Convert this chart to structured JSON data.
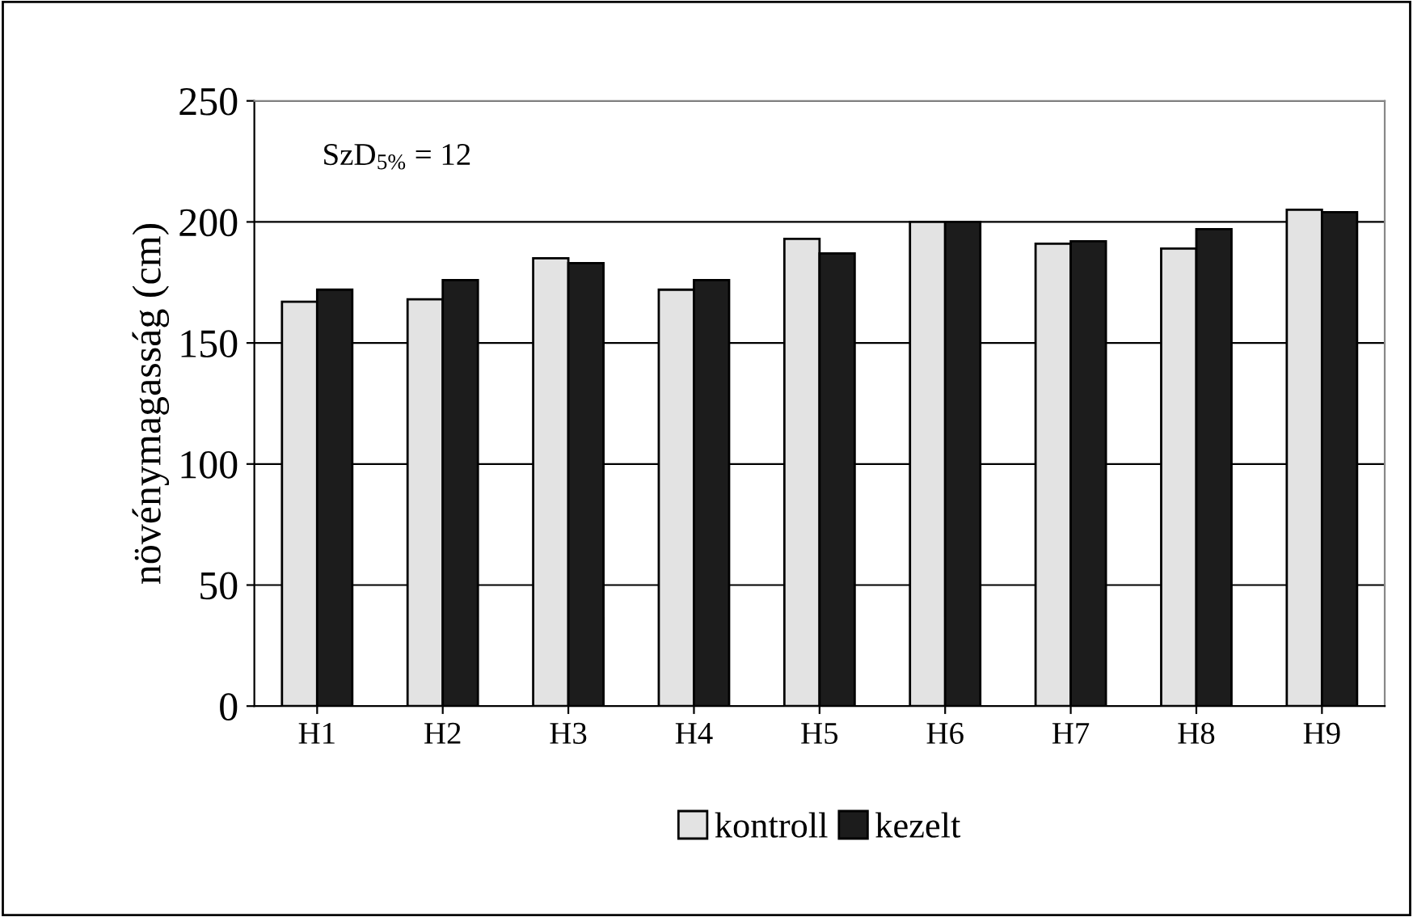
{
  "chart_data": {
    "type": "bar",
    "ylabel": "növénymagasság (cm)",
    "categories": [
      "H1",
      "H2",
      "H3",
      "H4",
      "H5",
      "H6",
      "H7",
      "H8",
      "H9"
    ],
    "series": [
      {
        "name": "kontroll",
        "color": "#e3e3e3",
        "values": [
          167,
          168,
          185,
          172,
          193,
          200,
          191,
          189,
          205
        ]
      },
      {
        "name": "kezelt",
        "color": "#1c1c1c",
        "values": [
          172,
          176,
          183,
          176,
          187,
          200,
          192,
          197,
          204
        ]
      }
    ],
    "ylim": [
      0,
      250
    ],
    "yticks": [
      0,
      50,
      100,
      150,
      200,
      250
    ],
    "grid": "y",
    "legend": "bottom",
    "annotations": [
      "SzD$_{5%}$ = 12"
    ]
  }
}
